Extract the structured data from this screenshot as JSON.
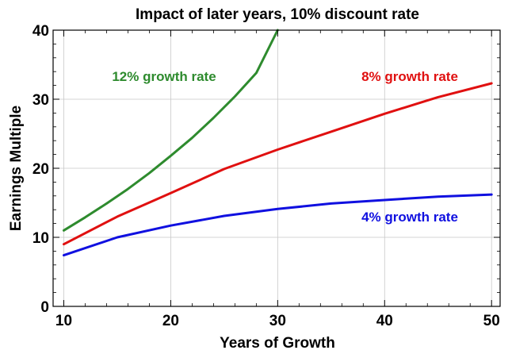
{
  "chart_data": {
    "type": "line",
    "title": "Impact of later years, 10% discount rate",
    "xlabel": "Years of Growth",
    "ylabel": "Earnings Multiple",
    "xlim": [
      9,
      50.8
    ],
    "ylim": [
      0,
      40
    ],
    "xticks": [
      10,
      20,
      30,
      40,
      50
    ],
    "yticks": [
      0,
      10,
      20,
      30,
      40
    ],
    "grid": true,
    "series": [
      {
        "name": "12% growth rate",
        "color": "#2e8b2e",
        "x": [
          10,
          12,
          14,
          16,
          18,
          20,
          22,
          24,
          26,
          28,
          30
        ],
        "y": [
          11.0,
          12.9,
          14.9,
          17.0,
          19.3,
          21.8,
          24.4,
          27.3,
          30.4,
          33.8,
          40.0
        ]
      },
      {
        "name": "8% growth rate",
        "color": "#e01010",
        "x": [
          10,
          15,
          20,
          25,
          30,
          35,
          40,
          45,
          50
        ],
        "y": [
          9.0,
          13.0,
          16.4,
          19.9,
          22.7,
          25.3,
          27.9,
          30.3,
          32.3
        ]
      },
      {
        "name": "4% growth rate",
        "color": "#1010e0",
        "x": [
          10,
          15,
          20,
          25,
          30,
          35,
          40,
          45,
          50
        ],
        "y": [
          7.4,
          10.0,
          11.7,
          13.1,
          14.1,
          14.9,
          15.4,
          15.9,
          16.2
        ]
      }
    ]
  }
}
